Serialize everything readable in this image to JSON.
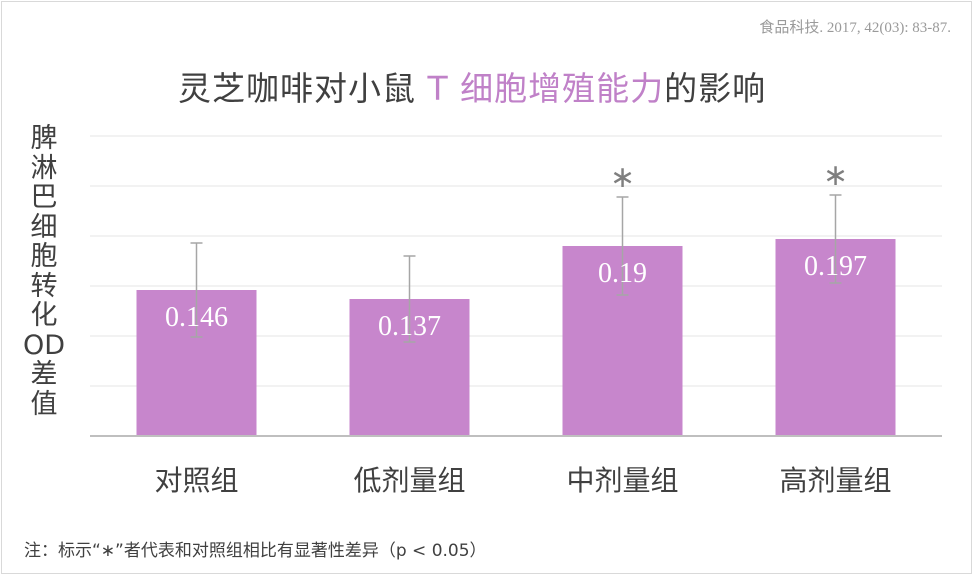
{
  "citation": "食品科技. 2017, 42(03): 83-87.",
  "title_parts": [
    "灵芝咖啡对小鼠 ",
    "T 细胞增殖能力",
    "的影响"
  ],
  "y_axis_label": "脾淋巴细胞转化OD差值",
  "footnote": "注：标示“∗”者代表和对照组相比有显著性差异（p < 0.05）",
  "colors": {
    "bar": "#c786cc",
    "title_highlight": "#c081c8",
    "error_bar": "#a6a6a6",
    "text": "#404040",
    "grid": "#e6e6e6"
  },
  "chart_data": {
    "type": "bar",
    "categories": [
      "对照组",
      "低剂量组",
      "中剂量组",
      "高剂量组"
    ],
    "values": [
      0.146,
      0.137,
      0.19,
      0.197
    ],
    "value_labels": [
      "0.146",
      "0.137",
      "0.19",
      "0.197"
    ],
    "error": [
      0.047,
      0.043,
      0.049,
      0.044
    ],
    "significance": [
      "",
      "",
      "∗",
      "∗"
    ],
    "ylim": [
      0,
      0.3
    ],
    "y_gridlines": [
      0.05,
      0.1,
      0.15,
      0.2,
      0.25,
      0.3
    ],
    "grid": true,
    "legend": "none"
  }
}
